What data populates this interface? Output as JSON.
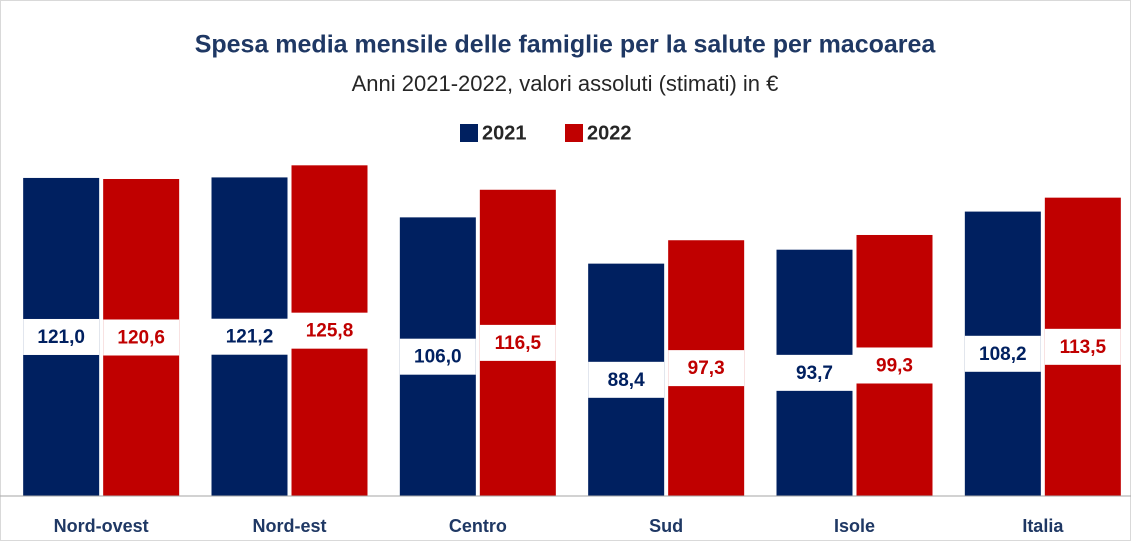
{
  "chart_data": {
    "type": "bar",
    "title": "Spesa media mensile delle famiglie per la salute per macoarea",
    "subtitle": "Anni 2021-2022, valori assoluti (stimati) in €",
    "categories": [
      "Nord-ovest",
      "Nord-est",
      "Centro",
      "Sud",
      "Isole",
      "Italia"
    ],
    "series": [
      {
        "name": "2021",
        "color": "#002060",
        "values": [
          121.0,
          121.2,
          106.0,
          88.4,
          93.7,
          108.2
        ],
        "value_labels": [
          "121,0",
          "121,2",
          "106,0",
          "88,4",
          "93,7",
          "108,2"
        ]
      },
      {
        "name": "2022",
        "color": "#c00000",
        "values": [
          120.6,
          125.8,
          116.5,
          97.3,
          99.3,
          113.5
        ],
        "value_labels": [
          "120,6",
          "125,8",
          "116,5",
          "97,3",
          "99,3",
          "113,5"
        ]
      }
    ],
    "ylim": [
      0,
      140
    ],
    "legend": "top"
  }
}
